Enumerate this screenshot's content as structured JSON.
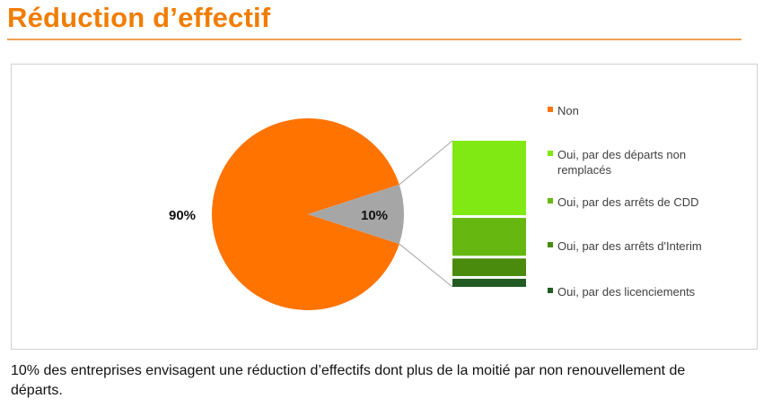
{
  "page": {
    "title": "Réduction d’effectif",
    "caption": "10% des entreprises envisagent une réduction d’effectifs dont plus de la moitié par non renouvellement de départs."
  },
  "colors": {
    "title": "#f07d00",
    "non": "#ff7300",
    "oui_total": "#a6a6a6",
    "departs_non_remplaces": "#80e812",
    "arrets_cdd": "#66b811",
    "arrets_interim": "#4a8a0c",
    "licenciements": "#225c22"
  },
  "chart_data": {
    "type": "pie",
    "variant": "pie-of-bar",
    "title": "",
    "slices": [
      {
        "name": "Non",
        "value": 90,
        "label": "90%",
        "color": "#ff7300"
      },
      {
        "name": "Oui",
        "value": 10,
        "label": "10%",
        "color": "#a6a6a6"
      }
    ],
    "breakdown_of": "Oui",
    "breakdown": [
      {
        "name": "Oui, par des départs non remplacés",
        "value": 5.5,
        "color": "#80e812"
      },
      {
        "name": "Oui, par des arrêts de CDD",
        "value": 2.8,
        "color": "#66b811"
      },
      {
        "name": "Oui, par des arrêts d'Interim",
        "value": 1.3,
        "color": "#4a8a0c"
      },
      {
        "name": "Oui, par des licenciements",
        "value": 0.6,
        "color": "#225c22"
      }
    ],
    "legend": {
      "placement": "right",
      "entries": [
        {
          "lines": [
            "Non"
          ],
          "color": "#ff7300"
        },
        {
          "lines": [
            "Oui, par des départs non",
            "remplacés"
          ],
          "color": "#80e812"
        },
        {
          "lines": [
            "Oui, par des arrêts de CDD"
          ],
          "color": "#66b811"
        },
        {
          "lines": [
            "Oui, par des arrêts d'Interim"
          ],
          "color": "#4a8a0c"
        },
        {
          "lines": [
            "Oui, par des licenciements"
          ],
          "color": "#225c22"
        }
      ]
    }
  }
}
